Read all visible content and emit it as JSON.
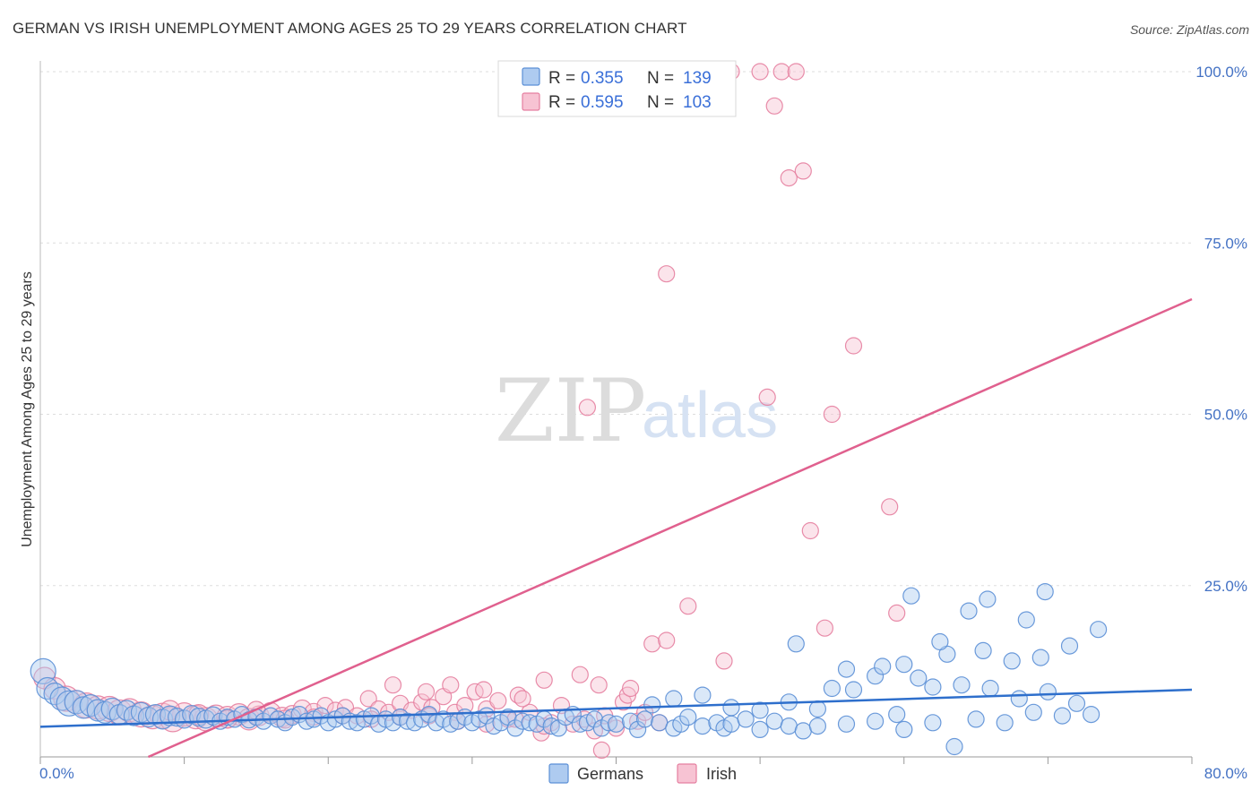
{
  "title": "GERMAN VS IRISH UNEMPLOYMENT AMONG AGES 25 TO 29 YEARS CORRELATION CHART",
  "source": "Source: ZipAtlas.com",
  "watermark": {
    "zip": "ZIP",
    "atlas": "atlas"
  },
  "colors": {
    "german": "#5b8fd6",
    "german_fill": "#aecbf0",
    "irish": "#e57fa0",
    "irish_fill": "#f7c3d3",
    "german_line": "#2e6fcc",
    "irish_line": "#e0608e",
    "tick_text": "#4472c4"
  },
  "legend": {
    "r_label": "R =",
    "n_label": "N =",
    "german": {
      "r": "0.355",
      "n": "139"
    },
    "irish": {
      "r": "0.595",
      "n": "103"
    }
  },
  "bottom_legend": {
    "german": "Germans",
    "irish": "Irish"
  },
  "chart_data": {
    "type": "scatter",
    "title": "GERMAN VS IRISH UNEMPLOYMENT AMONG AGES 25 TO 29 YEARS CORRELATION CHART",
    "xlabel": "",
    "ylabel": "Unemployment Among Ages 25 to 29 years",
    "xlim": [
      0,
      80
    ],
    "ylim": [
      0,
      100
    ],
    "x_tick_labels": [
      "0.0%",
      "80.0%"
    ],
    "y_tick_labels": [
      "25.0%",
      "50.0%",
      "75.0%",
      "100.0%"
    ],
    "y_ticks": [
      25,
      50,
      75,
      100
    ],
    "grid": true,
    "legend_position": "top-center",
    "series": [
      {
        "name": "Germans",
        "r": 0.355,
        "n": 139,
        "trend": {
          "x": [
            0,
            80
          ],
          "y": [
            4.4,
            9.8
          ]
        },
        "points": [
          [
            0.2,
            12.5,
            14
          ],
          [
            0.5,
            10.0,
            12
          ],
          [
            1.0,
            9.2,
            12
          ],
          [
            1.5,
            8.5,
            13
          ],
          [
            2.0,
            7.8,
            14
          ],
          [
            2.5,
            8.0,
            13
          ],
          [
            3.0,
            7.2,
            12
          ],
          [
            3.5,
            7.5,
            12
          ],
          [
            4.0,
            6.8,
            12
          ],
          [
            4.5,
            6.5,
            12
          ],
          [
            5.0,
            7.0,
            12
          ],
          [
            5.5,
            6.2,
            11
          ],
          [
            6.0,
            6.8,
            11
          ],
          [
            6.5,
            6.0,
            11
          ],
          [
            7.0,
            6.5,
            11
          ],
          [
            7.5,
            5.8,
            11
          ],
          [
            8.0,
            6.2,
            11
          ],
          [
            8.5,
            5.5,
            11
          ],
          [
            9.0,
            6.0,
            11
          ],
          [
            9.5,
            5.8,
            10
          ],
          [
            10.0,
            5.5,
            10
          ],
          [
            10.5,
            6.2,
            10
          ],
          [
            11.0,
            5.8,
            10
          ],
          [
            11.5,
            5.5,
            10
          ],
          [
            12.0,
            6.0,
            10
          ],
          [
            12.5,
            5.2,
            9
          ],
          [
            13.0,
            5.8,
            9
          ],
          [
            13.5,
            5.5,
            9
          ],
          [
            14.0,
            6.2,
            9
          ],
          [
            14.5,
            5.4,
            9
          ],
          [
            15.0,
            5.8,
            9
          ],
          [
            15.5,
            5.2,
            9
          ],
          [
            16.0,
            6.0,
            9
          ],
          [
            16.5,
            5.5,
            9
          ],
          [
            17.0,
            5.0,
            9
          ],
          [
            17.5,
            5.8,
            9
          ],
          [
            18.0,
            6.2,
            9
          ],
          [
            18.5,
            5.2,
            9
          ],
          [
            19.0,
            5.5,
            9
          ],
          [
            19.5,
            6.0,
            9
          ],
          [
            20.0,
            5.0,
            9
          ],
          [
            20.5,
            5.5,
            9
          ],
          [
            21.0,
            6.0,
            9
          ],
          [
            21.5,
            5.2,
            9
          ],
          [
            22.0,
            5.0,
            9
          ],
          [
            22.5,
            5.5,
            9
          ],
          [
            23.0,
            6.0,
            9
          ],
          [
            23.5,
            4.8,
            9
          ],
          [
            24.0,
            5.5,
            9
          ],
          [
            24.5,
            5.0,
            9
          ],
          [
            25.0,
            5.8,
            9
          ],
          [
            25.5,
            5.2,
            9
          ],
          [
            26.0,
            5.0,
            9
          ],
          [
            26.5,
            5.5,
            9
          ],
          [
            27.0,
            6.2,
            9
          ],
          [
            27.5,
            5.0,
            9
          ],
          [
            28.0,
            5.5,
            9
          ],
          [
            28.5,
            4.8,
            9
          ],
          [
            29.0,
            5.2,
            9
          ],
          [
            29.5,
            5.8,
            9
          ],
          [
            30.0,
            5.0,
            9
          ],
          [
            30.5,
            5.5,
            9
          ],
          [
            31.0,
            6.0,
            9
          ],
          [
            31.5,
            4.5,
            9
          ],
          [
            32.0,
            5.0,
            9
          ],
          [
            32.5,
            5.8,
            9
          ],
          [
            33.0,
            4.2,
            9
          ],
          [
            33.5,
            5.2,
            9
          ],
          [
            34.0,
            5.0,
            9
          ],
          [
            34.5,
            4.8,
            9
          ],
          [
            35.0,
            5.5,
            9
          ],
          [
            35.5,
            4.5,
            9
          ],
          [
            36.0,
            4.2,
            9
          ],
          [
            36.5,
            5.8,
            9
          ],
          [
            37.0,
            6.2,
            9
          ],
          [
            37.5,
            4.8,
            9
          ],
          [
            38.0,
            5.0,
            9
          ],
          [
            38.5,
            5.5,
            9
          ],
          [
            39.0,
            4.2,
            9
          ],
          [
            39.5,
            5.0,
            9
          ],
          [
            40.0,
            4.8,
            9
          ],
          [
            41.0,
            5.2,
            9
          ],
          [
            41.5,
            4.0,
            9
          ],
          [
            42.0,
            5.5,
            9
          ],
          [
            43.0,
            5.0,
            9
          ],
          [
            44.0,
            4.2,
            9
          ],
          [
            44.5,
            4.8,
            9
          ],
          [
            45.0,
            5.8,
            9
          ],
          [
            46.0,
            4.5,
            9
          ],
          [
            47.0,
            5.0,
            9
          ],
          [
            47.5,
            4.2,
            9
          ],
          [
            48.0,
            4.8,
            9
          ],
          [
            49.0,
            5.5,
            9
          ],
          [
            50.0,
            4.0,
            9
          ],
          [
            51.0,
            5.2,
            9
          ],
          [
            52.0,
            4.5,
            9
          ],
          [
            53.0,
            3.8,
            9
          ],
          [
            54.0,
            4.5,
            9
          ],
          [
            56.0,
            4.8,
            9
          ],
          [
            58.0,
            5.2,
            9
          ],
          [
            60.0,
            4.0,
            9
          ],
          [
            62.0,
            5.0,
            9
          ],
          [
            63.5,
            1.5,
            9
          ],
          [
            65.0,
            5.5,
            9
          ],
          [
            67.0,
            5.0,
            9
          ],
          [
            69.0,
            6.5,
            9
          ],
          [
            71.0,
            6.0,
            9
          ],
          [
            73.0,
            6.2,
            9
          ],
          [
            42.5,
            7.6,
            9
          ],
          [
            44.0,
            8.5,
            9
          ],
          [
            46.0,
            9.0,
            9
          ],
          [
            48.0,
            7.2,
            9
          ],
          [
            50.0,
            6.8,
            9
          ],
          [
            52.0,
            8.0,
            9
          ],
          [
            54.0,
            7.0,
            9
          ],
          [
            55.0,
            10.0,
            9
          ],
          [
            56.5,
            9.8,
            9
          ],
          [
            58.0,
            11.8,
            9
          ],
          [
            59.5,
            6.2,
            9
          ],
          [
            60.0,
            13.5,
            9
          ],
          [
            62.0,
            10.2,
            9
          ],
          [
            64.0,
            10.5,
            9
          ],
          [
            66.0,
            10.0,
            9
          ],
          [
            68.0,
            8.5,
            9
          ],
          [
            70.0,
            9.5,
            9
          ],
          [
            72.0,
            7.8,
            9
          ],
          [
            56.0,
            12.8,
            9
          ],
          [
            58.5,
            13.2,
            9
          ],
          [
            61.0,
            11.5,
            9
          ],
          [
            63.0,
            15.0,
            9
          ],
          [
            65.5,
            15.5,
            9
          ],
          [
            67.5,
            14.0,
            9
          ],
          [
            69.5,
            14.5,
            9
          ],
          [
            71.5,
            16.2,
            9
          ],
          [
            73.5,
            18.6,
            9
          ],
          [
            52.5,
            16.5,
            9
          ],
          [
            60.5,
            23.5,
            9
          ],
          [
            62.5,
            16.8,
            9
          ],
          [
            64.5,
            21.3,
            9
          ],
          [
            65.8,
            23.0,
            9
          ],
          [
            68.5,
            20.0,
            9
          ],
          [
            69.8,
            24.1,
            9
          ]
        ]
      },
      {
        "name": "Irish",
        "r": 0.595,
        "n": 103,
        "trend": {
          "x": [
            7.5,
            80
          ],
          "y": [
            0,
            66.8
          ]
        },
        "points": [
          [
            0.3,
            11.5,
            12
          ],
          [
            1.0,
            10.0,
            12
          ],
          [
            1.8,
            8.5,
            14
          ],
          [
            2.5,
            8.0,
            13
          ],
          [
            3.2,
            7.5,
            14
          ],
          [
            4.0,
            7.2,
            13
          ],
          [
            4.8,
            7.0,
            14
          ],
          [
            5.5,
            6.5,
            14
          ],
          [
            6.2,
            6.8,
            13
          ],
          [
            7.0,
            6.2,
            14
          ],
          [
            7.8,
            5.8,
            13
          ],
          [
            8.5,
            6.0,
            14
          ],
          [
            9.2,
            5.5,
            14
          ],
          [
            10.0,
            6.2,
            13
          ],
          [
            10.8,
            5.8,
            13
          ],
          [
            11.5,
            5.5,
            13
          ],
          [
            12.2,
            6.0,
            12
          ],
          [
            13.0,
            5.8,
            12
          ],
          [
            13.8,
            6.2,
            12
          ],
          [
            14.5,
            5.5,
            12
          ],
          [
            15.2,
            6.0,
            11
          ],
          [
            16.0,
            6.5,
            11
          ],
          [
            16.8,
            5.8,
            11
          ],
          [
            17.5,
            6.2,
            10
          ],
          [
            18.2,
            7.0,
            10
          ],
          [
            19.0,
            6.5,
            10
          ],
          [
            19.8,
            7.5,
            9
          ],
          [
            20.5,
            6.8,
            9
          ],
          [
            21.2,
            7.2,
            9
          ],
          [
            22.0,
            6.0,
            9
          ],
          [
            22.8,
            8.5,
            9
          ],
          [
            23.5,
            7.0,
            9
          ],
          [
            24.2,
            6.5,
            9
          ],
          [
            25.0,
            7.8,
            9
          ],
          [
            25.8,
            6.8,
            9
          ],
          [
            26.5,
            8.0,
            9
          ],
          [
            27.2,
            7.2,
            9
          ],
          [
            28.0,
            8.8,
            9
          ],
          [
            28.8,
            6.5,
            9
          ],
          [
            29.5,
            7.5,
            9
          ],
          [
            30.2,
            9.5,
            9
          ],
          [
            31.0,
            7.0,
            9
          ],
          [
            31.8,
            8.2,
            9
          ],
          [
            32.5,
            5.5,
            9
          ],
          [
            33.2,
            9.0,
            9
          ],
          [
            34.0,
            6.5,
            9
          ],
          [
            34.8,
            3.5,
            9
          ],
          [
            35.5,
            5.0,
            9
          ],
          [
            36.2,
            7.5,
            9
          ],
          [
            37.0,
            4.8,
            9
          ],
          [
            37.8,
            5.5,
            9
          ],
          [
            38.5,
            3.8,
            9
          ],
          [
            39.2,
            6.0,
            9
          ],
          [
            40.0,
            4.2,
            9
          ],
          [
            40.5,
            8.0,
            9
          ],
          [
            41.5,
            5.2,
            9
          ],
          [
            42.0,
            6.5,
            9
          ],
          [
            43.0,
            5.0,
            9
          ],
          [
            24.5,
            10.5,
            9
          ],
          [
            26.8,
            9.5,
            9
          ],
          [
            28.5,
            10.5,
            9
          ],
          [
            30.8,
            9.8,
            9
          ],
          [
            33.5,
            8.5,
            9
          ],
          [
            35.0,
            11.2,
            9
          ],
          [
            37.5,
            12.0,
            9
          ],
          [
            38.8,
            10.5,
            9
          ],
          [
            40.8,
            9.0,
            9
          ],
          [
            41.0,
            10.0,
            9
          ],
          [
            39.0,
            1.0,
            9
          ],
          [
            42.5,
            16.5,
            9
          ],
          [
            43.5,
            17.0,
            9
          ],
          [
            45.0,
            22.0,
            9
          ],
          [
            47.5,
            14.0,
            9
          ],
          [
            54.5,
            18.8,
            9
          ],
          [
            59.5,
            21.0,
            9
          ],
          [
            53.5,
            33.0,
            9
          ],
          [
            59.0,
            36.5,
            9
          ],
          [
            50.5,
            52.5,
            9
          ],
          [
            55.0,
            50.0,
            9
          ],
          [
            56.5,
            60.0,
            9
          ],
          [
            38.0,
            51.0,
            9
          ],
          [
            43.5,
            70.5,
            9
          ],
          [
            48.0,
            100.0,
            9
          ],
          [
            50.0,
            100.0,
            9
          ],
          [
            51.5,
            100.0,
            9
          ],
          [
            52.5,
            100.0,
            9
          ],
          [
            51.0,
            95.0,
            9
          ],
          [
            52.0,
            84.5,
            9
          ],
          [
            53.0,
            85.5,
            9
          ],
          [
            9.0,
            6.8,
            11
          ],
          [
            11.0,
            6.2,
            11
          ],
          [
            13.0,
            5.5,
            10
          ],
          [
            15.0,
            6.8,
            10
          ],
          [
            17.0,
            5.5,
            10
          ],
          [
            19.0,
            5.8,
            9
          ],
          [
            21.0,
            6.0,
            9
          ],
          [
            23.0,
            5.5,
            9
          ],
          [
            25.0,
            5.8,
            9
          ],
          [
            27.0,
            6.0,
            9
          ],
          [
            29.0,
            5.2,
            9
          ],
          [
            31.0,
            4.8,
            9
          ],
          [
            33.0,
            5.5,
            9
          ],
          [
            35.0,
            4.5,
            9
          ]
        ]
      }
    ]
  }
}
